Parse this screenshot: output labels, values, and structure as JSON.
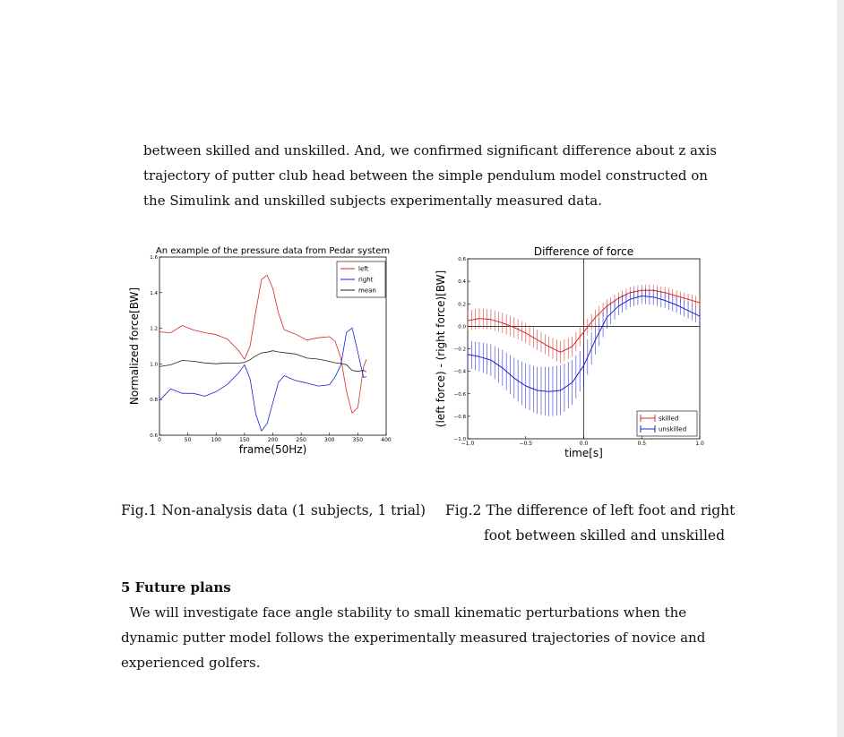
{
  "body_text": {
    "paragraph_1": "between skilled and unskilled. And, we confirmed significant difference about z axis trajectory of putter club head between the simple pendulum model constructed on the Simulink and unskilled subjects experimentally measured data.",
    "section_heading": "5 Future plans",
    "paragraph_2": "We will investigate face angle stability to small kinematic perturbations when the dynamic putter model follows the experimentally measured trajectories of novice and experienced golfers."
  },
  "captions": {
    "fig1": "Fig.1 Non-analysis data (1 subjects, 1 trial)",
    "fig2_line1": "Fig.2 The difference of left foot and right",
    "fig2_line2": "foot between skilled and unskilled"
  },
  "chart_data": [
    {
      "type": "line",
      "title": "An example of the pressure data from Pedar system",
      "xlabel": "frame(50Hz)",
      "ylabel": "Normalized force[BW]",
      "xlim": [
        0,
        400
      ],
      "ylim": [
        0.6,
        1.6
      ],
      "xticks": [
        0,
        50,
        100,
        150,
        200,
        250,
        300,
        350,
        400
      ],
      "yticks": [
        0.6,
        0.8,
        1.0,
        1.2,
        1.4,
        1.6
      ],
      "legend_position": "top-right",
      "grid": false,
      "colors": {
        "left": "#d62728",
        "right": "#1f1fd6",
        "mean": "#222222"
      },
      "x": [
        0,
        20,
        40,
        60,
        80,
        100,
        120,
        140,
        150,
        160,
        170,
        180,
        190,
        200,
        210,
        220,
        240,
        260,
        280,
        300,
        310,
        320,
        330,
        340,
        350,
        360,
        365
      ],
      "series": [
        {
          "name": "left",
          "values": [
            1.18,
            1.17,
            1.21,
            1.19,
            1.18,
            1.17,
            1.14,
            1.07,
            1.02,
            1.1,
            1.3,
            1.48,
            1.5,
            1.42,
            1.28,
            1.19,
            1.17,
            1.14,
            1.15,
            1.15,
            1.12,
            1.03,
            0.85,
            0.73,
            0.76,
            0.98,
            1.02
          ]
        },
        {
          "name": "right",
          "values": [
            0.79,
            0.86,
            0.84,
            0.84,
            0.82,
            0.84,
            0.88,
            0.95,
            1.0,
            0.92,
            0.72,
            0.62,
            0.66,
            0.78,
            0.9,
            0.94,
            0.91,
            0.89,
            0.87,
            0.88,
            0.93,
            1.0,
            1.18,
            1.2,
            1.06,
            0.92,
            0.93
          ]
        },
        {
          "name": "mean",
          "values": [
            0.99,
            1.0,
            1.02,
            1.01,
            1.0,
            1.0,
            1.01,
            1.01,
            1.01,
            1.02,
            1.04,
            1.06,
            1.07,
            1.08,
            1.07,
            1.06,
            1.05,
            1.03,
            1.03,
            1.02,
            1.01,
            1.0,
            0.99,
            0.96,
            0.96,
            0.97,
            0.96
          ]
        }
      ]
    },
    {
      "type": "line",
      "title": "Difference of force",
      "xlabel": "time[s]",
      "ylabel": "(left force) - (right force)[BW]",
      "xlim": [
        -1.0,
        1.0
      ],
      "ylim": [
        -1.0,
        0.6
      ],
      "xticks": [
        -1.0,
        -0.5,
        0.0,
        0.5,
        1.0
      ],
      "yticks": [
        -1.0,
        -0.8,
        -0.6,
        -0.4,
        -0.2,
        0.0,
        0.2,
        0.4,
        0.6
      ],
      "legend_position": "bottom-right",
      "grid": false,
      "error_bars": true,
      "colors": {
        "skilled": "#d62728",
        "unskilled": "#1f1fd6"
      },
      "x": [
        -1.0,
        -0.9,
        -0.8,
        -0.7,
        -0.6,
        -0.5,
        -0.4,
        -0.3,
        -0.2,
        -0.1,
        0.0,
        0.1,
        0.2,
        0.3,
        0.4,
        0.5,
        0.6,
        0.7,
        0.8,
        0.9,
        1.0
      ],
      "series": [
        {
          "name": "skilled",
          "values": [
            0.05,
            0.07,
            0.06,
            0.03,
            -0.01,
            -0.06,
            -0.12,
            -0.18,
            -0.23,
            -0.18,
            -0.05,
            0.08,
            0.18,
            0.25,
            0.3,
            0.32,
            0.32,
            0.3,
            0.27,
            0.24,
            0.21
          ],
          "error": [
            0.09,
            0.09,
            0.09,
            0.09,
            0.09,
            0.09,
            0.09,
            0.09,
            0.1,
            0.09,
            0.08,
            0.07,
            0.06,
            0.05,
            0.05,
            0.05,
            0.05,
            0.05,
            0.05,
            0.05,
            0.05
          ]
        },
        {
          "name": "unskilled",
          "values": [
            -0.25,
            -0.27,
            -0.3,
            -0.37,
            -0.46,
            -0.53,
            -0.57,
            -0.58,
            -0.57,
            -0.5,
            -0.35,
            -0.12,
            0.08,
            0.18,
            0.24,
            0.27,
            0.26,
            0.23,
            0.19,
            0.14,
            0.09
          ],
          "error": [
            0.12,
            0.13,
            0.14,
            0.16,
            0.18,
            0.2,
            0.21,
            0.22,
            0.22,
            0.2,
            0.17,
            0.13,
            0.1,
            0.08,
            0.07,
            0.07,
            0.07,
            0.07,
            0.07,
            0.07,
            0.07
          ]
        }
      ]
    }
  ]
}
